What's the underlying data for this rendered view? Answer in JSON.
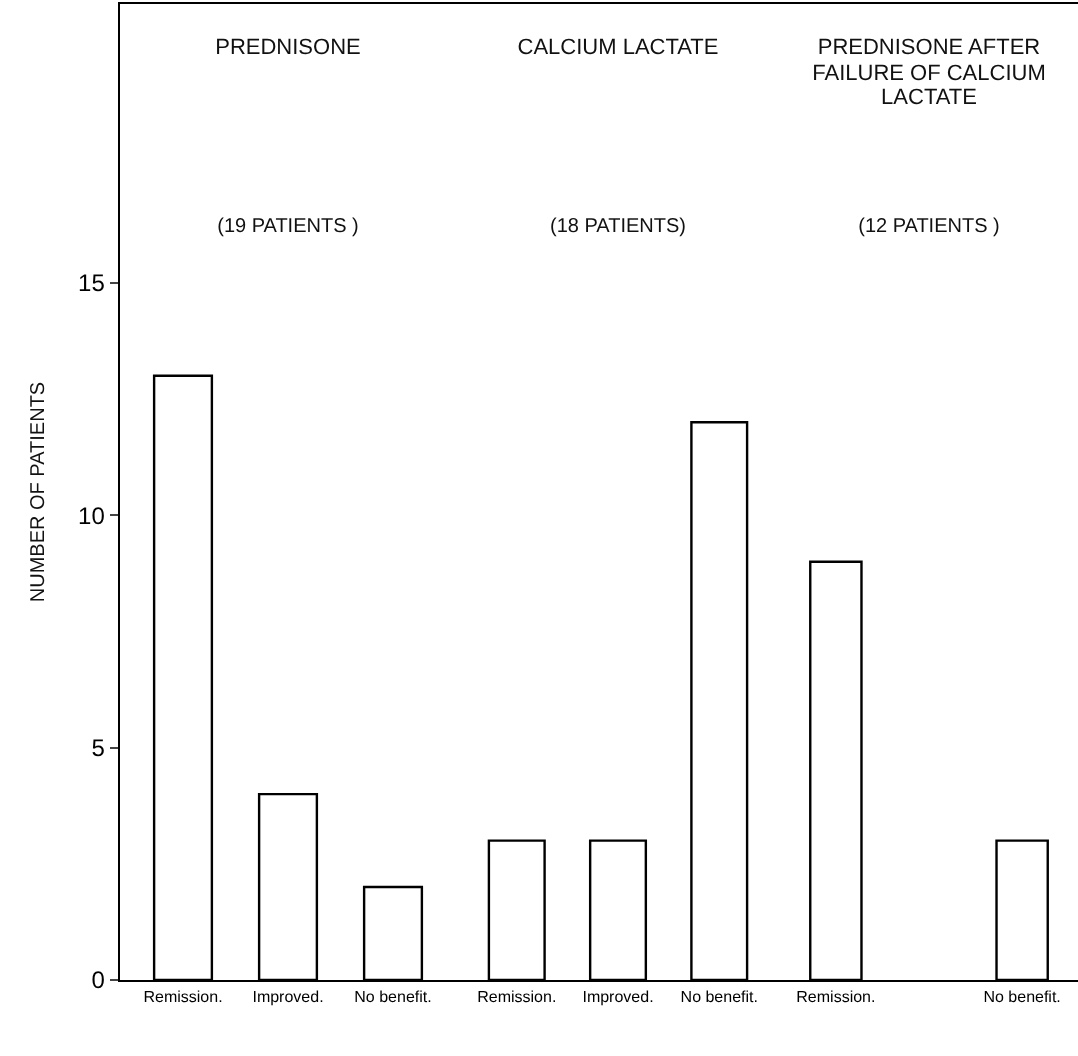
{
  "chart_data": [
    {
      "type": "bar",
      "title": "PREDNISONE",
      "subtitle": "(19 PATIENTS )",
      "ylabel": "NUMBER OF PATIENTS",
      "categories": [
        "Remission.",
        "Improved.",
        "No benefit."
      ],
      "values": [
        13,
        4,
        2
      ],
      "color": "#ffffff",
      "ylim": [
        0,
        21
      ],
      "yticks": [
        0,
        5,
        10,
        15
      ]
    },
    {
      "type": "bar",
      "title": "CALCIUM LACTATE",
      "subtitle": "(18 PATIENTS)",
      "categories": [
        "Remission.",
        "Improved.",
        "No benefit."
      ],
      "values": [
        3,
        3,
        12
      ],
      "color": "#ffffff",
      "ylim": [
        0,
        21
      ],
      "yticks": [
        0,
        5,
        10,
        15
      ],
      "tick_labels": "x"
    },
    {
      "type": "bar",
      "title": "PREDNISONE AFTER FAILURE OF CALCIUM LACTATE",
      "subtitle": "(12 PATIENTS )",
      "categories": [
        "Remission.",
        null,
        "No benefit."
      ],
      "values": [
        9,
        null,
        3
      ],
      "color": "#ffffff",
      "ylim": [
        0,
        21
      ],
      "yticks": [
        0,
        5,
        10,
        15
      ],
      "tick_labels": "x"
    }
  ]
}
